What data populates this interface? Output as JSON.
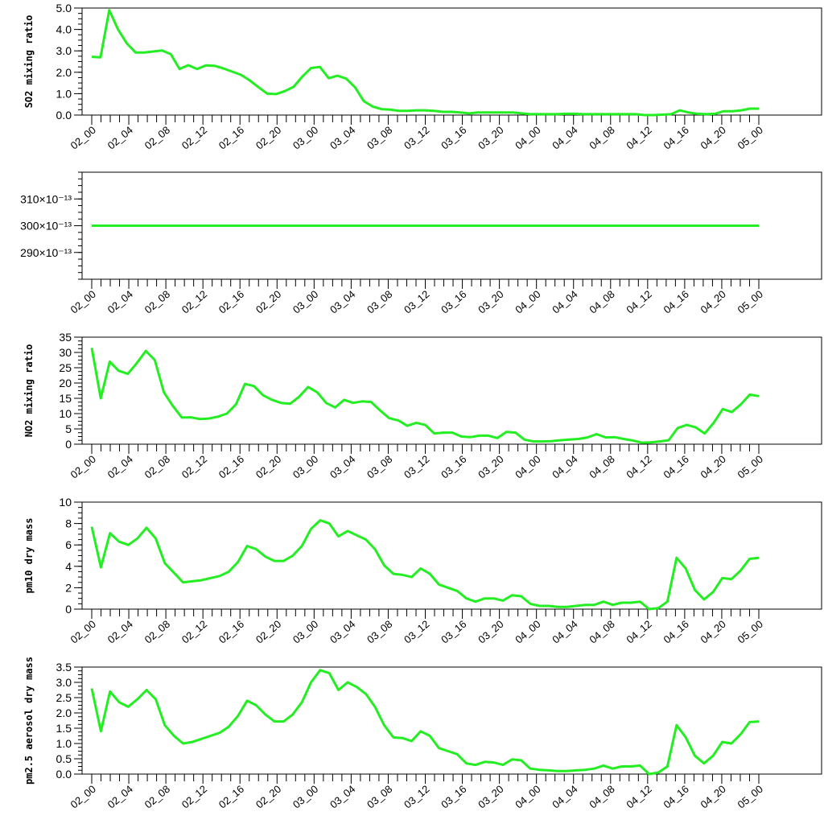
{
  "line_color": "#22ee22",
  "x_labels": [
    "02_00",
    "02_04",
    "02_08",
    "02_12",
    "02_16",
    "02_20",
    "03_00",
    "03_04",
    "03_08",
    "03_12",
    "03_16",
    "03_20",
    "04_00",
    "04_04",
    "04_08",
    "04_12",
    "04_16",
    "04_20",
    "05_00"
  ],
  "chart_data": [
    {
      "type": "line",
      "ylabel": "SO2 mixing ratio",
      "ylim": [
        0,
        5
      ],
      "yticks": [
        "0.0",
        "1.0",
        "2.0",
        "3.0",
        "4.0",
        "5.0"
      ],
      "ytick_values": [
        0,
        1,
        2,
        3,
        4,
        5
      ],
      "series": [
        {
          "values": [
            2.72,
            2.7,
            4.9,
            4.0,
            3.35,
            2.92,
            2.92,
            2.97,
            3.02,
            2.85,
            2.15,
            2.33,
            2.15,
            2.32,
            2.3,
            2.18,
            2.03,
            1.88,
            1.62,
            1.3,
            1.0,
            0.98,
            1.12,
            1.32,
            1.8,
            2.2,
            2.25,
            1.72,
            1.84,
            1.7,
            1.3,
            0.65,
            0.4,
            0.28,
            0.25,
            0.2,
            0.2,
            0.22,
            0.22,
            0.2,
            0.15,
            0.15,
            0.12,
            0.08,
            0.12,
            0.12,
            0.12,
            0.12,
            0.12,
            0.08,
            0.04,
            0.04,
            0.04,
            0.04,
            0.06,
            0.06,
            0.04,
            0.04,
            0.04,
            0.04,
            0.04,
            0.04,
            0.04,
            0.0,
            0.0,
            0.02,
            0.04,
            0.22,
            0.12,
            0.06,
            0.04,
            0.06,
            0.18,
            0.18,
            0.22,
            0.3,
            0.3
          ]
        }
      ]
    },
    {
      "type": "line",
      "ylabel": "",
      "ylim": [
        280,
        320
      ],
      "yticks": [
        "290×10⁻¹³",
        "300×10⁻¹³",
        "310×10⁻¹³"
      ],
      "ytick_values": [
        290,
        300,
        310
      ],
      "series": [
        {
          "values": [
            300,
            300,
            300,
            300,
            300,
            300,
            300,
            300,
            300,
            300,
            300,
            300,
            300,
            300,
            300,
            300,
            300,
            300,
            300,
            300,
            300,
            300,
            300,
            300,
            300,
            300,
            300,
            300,
            300,
            300,
            300,
            300,
            300,
            300,
            300,
            300,
            300,
            300,
            300,
            300,
            300,
            300,
            300,
            300,
            300,
            300,
            300,
            300,
            300,
            300,
            300,
            300,
            300,
            300,
            300,
            300,
            300,
            300,
            300,
            300,
            300,
            300,
            300,
            300,
            300,
            300,
            300,
            300,
            300,
            300,
            300,
            300,
            300,
            300,
            300,
            300,
            300
          ]
        }
      ]
    },
    {
      "type": "line",
      "ylabel": "NO2 mixing ratio",
      "ylim": [
        0,
        35
      ],
      "yticks": [
        "0",
        "5",
        "10",
        "15",
        "20",
        "25",
        "30",
        "35"
      ],
      "ytick_values": [
        0,
        5,
        10,
        15,
        20,
        25,
        30,
        35
      ],
      "series": [
        {
          "values": [
            31.5,
            15.0,
            27.0,
            24.0,
            23.0,
            26.5,
            30.5,
            27.5,
            17.0,
            12.5,
            8.7,
            8.8,
            8.2,
            8.4,
            9.0,
            10.0,
            13.0,
            19.7,
            19.0,
            16.0,
            14.5,
            13.5,
            13.2,
            15.5,
            18.7,
            17.0,
            13.5,
            12.0,
            14.5,
            13.5,
            14.0,
            13.8,
            11.0,
            8.5,
            7.8,
            6.0,
            7.0,
            6.3,
            3.5,
            3.8,
            3.8,
            2.5,
            2.3,
            2.8,
            2.8,
            2.0,
            4.0,
            3.8,
            1.5,
            0.9,
            0.9,
            1.0,
            1.3,
            1.5,
            1.7,
            2.2,
            3.3,
            2.2,
            2.3,
            1.7,
            1.2,
            0.5,
            0.6,
            0.9,
            1.3,
            5.3,
            6.3,
            5.5,
            3.5,
            7.0,
            11.5,
            10.5,
            13.0,
            16.2,
            15.7
          ]
        }
      ]
    },
    {
      "type": "line",
      "ylabel": "pm10 dry mass",
      "ylim": [
        0,
        10
      ],
      "yticks": [
        "0",
        "2",
        "4",
        "6",
        "8",
        "10"
      ],
      "ytick_values": [
        0,
        2,
        4,
        6,
        8,
        10
      ],
      "series": [
        {
          "values": [
            7.7,
            3.9,
            7.1,
            6.3,
            6.0,
            6.6,
            7.6,
            6.6,
            4.3,
            3.4,
            2.5,
            2.6,
            2.7,
            2.9,
            3.1,
            3.5,
            4.4,
            5.9,
            5.6,
            4.9,
            4.5,
            4.5,
            5.0,
            5.9,
            7.5,
            8.3,
            8.0,
            6.8,
            7.3,
            6.9,
            6.5,
            5.6,
            4.1,
            3.3,
            3.2,
            3.0,
            3.8,
            3.3,
            2.3,
            2.0,
            1.7,
            1.0,
            0.7,
            1.0,
            1.0,
            0.8,
            1.3,
            1.2,
            0.5,
            0.3,
            0.3,
            0.2,
            0.2,
            0.3,
            0.4,
            0.4,
            0.7,
            0.4,
            0.6,
            0.6,
            0.7,
            0.0,
            0.1,
            0.7,
            4.8,
            3.8,
            1.8,
            0.9,
            1.6,
            2.9,
            2.8,
            3.6,
            4.7,
            4.8
          ]
        }
      ]
    },
    {
      "type": "line",
      "ylabel": "pm2.5 aerosol dry mass",
      "ylim": [
        0,
        3.5
      ],
      "yticks": [
        "0.0",
        "0.5",
        "1.0",
        "1.5",
        "2.0",
        "2.5",
        "3.0",
        "3.5"
      ],
      "ytick_values": [
        0,
        0.5,
        1,
        1.5,
        2,
        2.5,
        3,
        3.5
      ],
      "series": [
        {
          "values": [
            2.8,
            1.4,
            2.7,
            2.35,
            2.2,
            2.45,
            2.75,
            2.45,
            1.6,
            1.25,
            1.0,
            1.05,
            1.15,
            1.25,
            1.35,
            1.55,
            1.9,
            2.4,
            2.25,
            1.95,
            1.72,
            1.72,
            1.95,
            2.35,
            3.0,
            3.4,
            3.3,
            2.75,
            3.0,
            2.85,
            2.62,
            2.2,
            1.6,
            1.2,
            1.18,
            1.08,
            1.4,
            1.25,
            0.85,
            0.75,
            0.65,
            0.35,
            0.3,
            0.4,
            0.38,
            0.3,
            0.48,
            0.45,
            0.18,
            0.14,
            0.12,
            0.1,
            0.1,
            0.12,
            0.14,
            0.18,
            0.28,
            0.18,
            0.25,
            0.25,
            0.28,
            0.0,
            0.05,
            0.25,
            1.6,
            1.2,
            0.6,
            0.35,
            0.6,
            1.05,
            1.0,
            1.3,
            1.7,
            1.72
          ]
        }
      ]
    }
  ]
}
